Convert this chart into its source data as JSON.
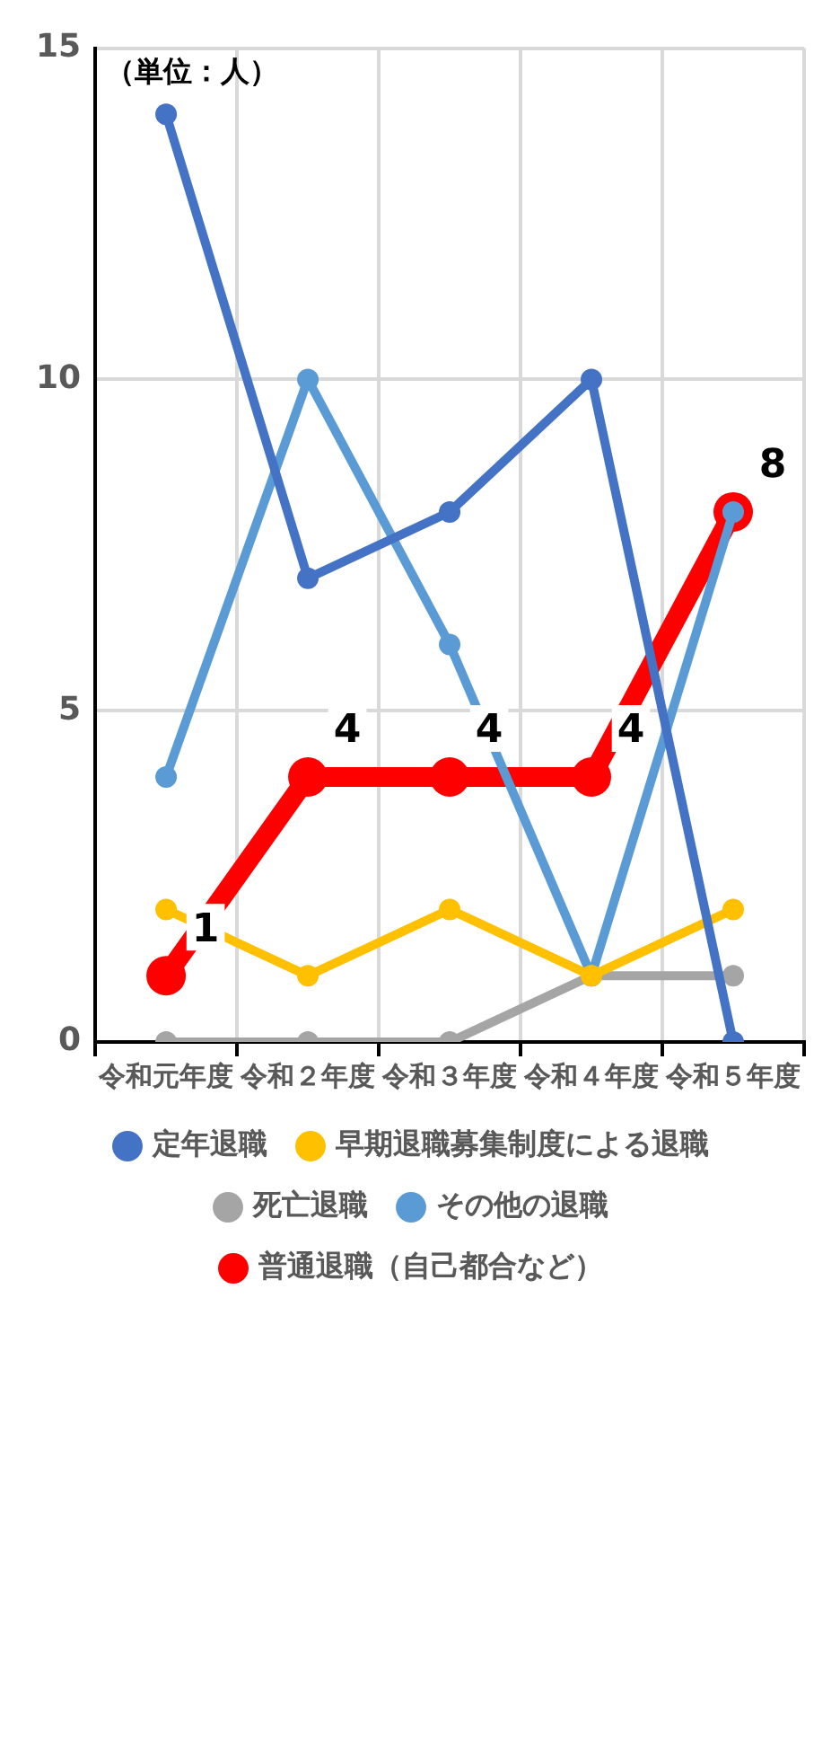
{
  "chart_data": {
    "type": "line",
    "annotations": [
      "（単位：人）"
    ],
    "categories": [
      "令和元年度",
      "令和２年度",
      "令和３年度",
      "令和４年度",
      "令和５年度"
    ],
    "series": [
      {
        "name": "定年退職",
        "color": "#4472c4",
        "values": [
          14,
          7,
          8,
          10,
          0
        ]
      },
      {
        "name": "早期退職募集制度による退職",
        "color": "#ffc000",
        "values": [
          2,
          1,
          2,
          1,
          2
        ]
      },
      {
        "name": "死亡退職",
        "color": "#a5a5a5",
        "values": [
          0,
          0,
          0,
          1,
          1
        ]
      },
      {
        "name": "普通退職（自己都合など）",
        "color": "#ff0000",
        "values": [
          1,
          4,
          4,
          4,
          8
        ],
        "value_labels": [
          "1",
          "4",
          "4",
          "4",
          "8"
        ]
      },
      {
        "name": "その他の退職",
        "color": "#5b9bd5",
        "values": [
          4,
          10,
          6,
          1,
          8
        ]
      }
    ],
    "ylim": [
      0,
      15
    ],
    "yticks": [
      0,
      5,
      10,
      15
    ],
    "grid": true,
    "legend": "bottom",
    "marker": "circle",
    "line_style": "solid"
  }
}
